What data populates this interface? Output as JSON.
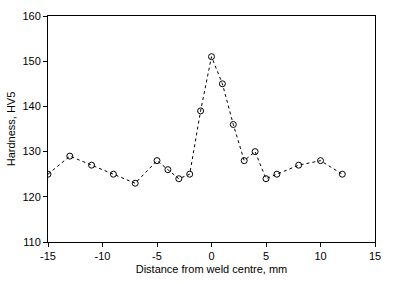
{
  "chart_data": {
    "type": "line",
    "x_label": "Distance from weld centre, mm",
    "y_label": "Hardness, HV5",
    "x": [
      -15,
      -13,
      -11,
      -9,
      -7,
      -5,
      -4,
      -3,
      -2,
      -1,
      0,
      1,
      2,
      3,
      4,
      5,
      6,
      8,
      10,
      12
    ],
    "values": [
      125,
      129,
      127,
      125,
      123,
      128,
      126,
      124,
      125,
      139,
      151,
      145,
      136,
      128,
      130,
      124,
      125,
      127,
      128,
      125
    ],
    "color": "#000000",
    "marker": "circle-open",
    "line_style": "dot",
    "xlim": [
      -15,
      15
    ],
    "xticks": [
      -15,
      -10,
      -5,
      0,
      5,
      10,
      15
    ],
    "ylim": [
      110,
      160
    ],
    "yticks": [
      110,
      120,
      130,
      140,
      150,
      160
    ],
    "grid": false
  }
}
